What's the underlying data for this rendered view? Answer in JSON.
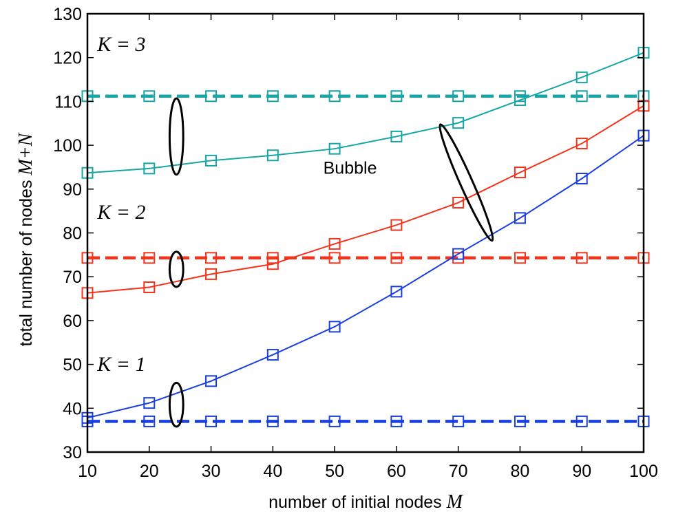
{
  "chart_data": {
    "type": "line",
    "xlabel": "number of initial nodes ",
    "xlabel_var": "M",
    "ylabel": "total number of nodes ",
    "ylabel_var": "M+N",
    "xlim": [
      10,
      100
    ],
    "ylim": [
      30,
      130
    ],
    "xticks": [
      "10",
      "20",
      "30",
      "40",
      "50",
      "60",
      "70",
      "80",
      "90",
      "100"
    ],
    "yticks": [
      "30",
      "40",
      "50",
      "60",
      "70",
      "80",
      "90",
      "100",
      "110",
      "120",
      "130"
    ],
    "grid": false,
    "x": [
      10,
      20,
      30,
      40,
      50,
      60,
      70,
      80,
      90,
      100
    ],
    "series": [
      {
        "group": "K = 3",
        "style": "solid",
        "color": "#17a6a6",
        "values": [
          93.7,
          94.7,
          96.5,
          97.7,
          99.2,
          102.0,
          105.1,
          110.3,
          115.5,
          121.1
        ]
      },
      {
        "group": "K = 3",
        "style": "dashed",
        "color": "#17a6a6",
        "values": [
          111.2,
          111.2,
          111.2,
          111.2,
          111.2,
          111.2,
          111.2,
          111.2,
          111.2,
          111.2
        ]
      },
      {
        "group": "K = 2",
        "style": "solid",
        "color": "#f5331a",
        "values": [
          66.3,
          67.6,
          70.6,
          72.9,
          77.5,
          81.8,
          86.9,
          93.8,
          100.4,
          109.0
        ]
      },
      {
        "group": "K = 2",
        "style": "dashed",
        "color": "#f5331a",
        "values": [
          74.3,
          74.3,
          74.3,
          74.3,
          74.3,
          74.3,
          74.3,
          74.3,
          74.3,
          74.3
        ]
      },
      {
        "group": "K = 1",
        "style": "solid",
        "color": "#1a3fe0",
        "values": [
          37.8,
          41.2,
          46.2,
          52.2,
          58.6,
          66.6,
          75.2,
          83.4,
          92.4,
          102.2
        ]
      },
      {
        "group": "K = 1",
        "style": "dashed",
        "color": "#1a3fe0",
        "values": [
          37.0,
          37.0,
          37.0,
          37.0,
          37.0,
          37.0,
          37.0,
          37.0,
          37.0,
          37.0
        ]
      }
    ],
    "annotations": [
      {
        "text": "K = 3",
        "x": 15.5,
        "y": 121.5,
        "style": "italic"
      },
      {
        "text": "K = 2",
        "x": 15.5,
        "y": 83.2,
        "style": "italic"
      },
      {
        "text": "K = 1",
        "x": 15.5,
        "y": 48.5,
        "style": "italic"
      },
      {
        "text": "Bubble",
        "x": 52.5,
        "y": 93.5,
        "style": "plain"
      }
    ],
    "ellipses": [
      {
        "cx": 24.4,
        "cy": 102.0,
        "rx": 1.1,
        "ry": 8.7,
        "rot": 0
      },
      {
        "cx": 24.4,
        "cy": 71.7,
        "rx": 1.1,
        "ry": 4.0,
        "rot": 0
      },
      {
        "cx": 24.4,
        "cy": 40.8,
        "rx": 1.1,
        "ry": 5.0,
        "rot": 0
      },
      {
        "cx": 71.3,
        "cy": 91.5,
        "rx": 1.0,
        "ry": 14.5,
        "rot": -24
      }
    ]
  }
}
